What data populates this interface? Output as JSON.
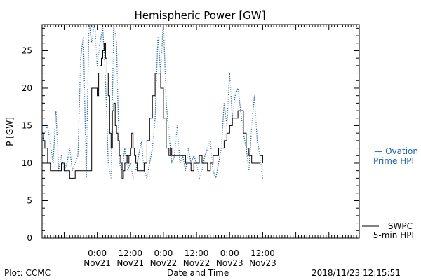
{
  "chart_data": {
    "type": "line",
    "title": "Hemispheric Power [GW]",
    "ylabel": "P [GW]",
    "xlabel": "Date and Time",
    "ylim": [
      0,
      28.5
    ],
    "yticks": [
      0,
      5,
      10,
      15,
      20,
      25
    ],
    "xlim": [
      -20,
      95
    ],
    "x_unit": "hours relative to 2018/11/21 00:00",
    "xticks": [
      {
        "x": 0,
        "line1": "0:00",
        "line2": "Nov21"
      },
      {
        "x": 12,
        "line1": "12:00",
        "line2": "Nov21"
      },
      {
        "x": 24,
        "line1": "0:00",
        "line2": "Nov22"
      },
      {
        "x": 36,
        "line1": "12:00",
        "line2": "Nov22"
      },
      {
        "x": 48,
        "line1": "0:00",
        "line2": "Nov23"
      },
      {
        "x": 60,
        "line1": "12:00",
        "line2": "Nov23"
      }
    ],
    "grid": false,
    "series": [
      {
        "name": "SWPC 5-min HPI",
        "name_line1": "SWPC",
        "name_line2": "5-min HPI",
        "color": "#000000",
        "style": "solid",
        "x": [
          -20,
          -19.5,
          -19,
          -18,
          -17,
          -15,
          -13,
          -12,
          -11,
          -10,
          -9,
          -8,
          -6,
          -4,
          -2,
          0,
          0.5,
          1,
          1.5,
          2,
          2.5,
          3,
          3.5,
          4,
          4.5,
          5,
          5.5,
          6,
          6.5,
          7,
          7.5,
          8,
          8.5,
          9,
          9.5,
          10,
          10.5,
          11,
          11.5,
          12,
          12.5,
          13,
          13.5,
          14,
          14.5,
          15,
          16,
          17,
          18,
          19,
          20,
          21,
          22,
          23,
          24,
          25,
          26,
          26.5,
          27,
          28,
          29,
          30,
          32,
          34,
          35,
          36,
          37,
          38,
          39,
          40,
          41,
          42,
          44,
          46,
          47,
          48,
          49,
          50,
          51,
          52,
          53,
          54,
          55,
          56,
          57,
          58,
          59,
          60
        ],
        "y": [
          14,
          13,
          12,
          10,
          9,
          9,
          10,
          9,
          9,
          8,
          8,
          9,
          9,
          9,
          20,
          19,
          22,
          23,
          24,
          25,
          26,
          24,
          22,
          19,
          14,
          12,
          17,
          18,
          15,
          14,
          13,
          11,
          10,
          8,
          9,
          10,
          11,
          10,
          11,
          12,
          14,
          12,
          11,
          10,
          9,
          9,
          9,
          10,
          13,
          16,
          19,
          22,
          22,
          20,
          16,
          12,
          11,
          12,
          11,
          11,
          11,
          11,
          10,
          9,
          10,
          10,
          11,
          10,
          10,
          9,
          10,
          11,
          12,
          13,
          14,
          15,
          16,
          16,
          17,
          17,
          14,
          12,
          11,
          10,
          10,
          10,
          11,
          10
        ]
      },
      {
        "name": "Ovation Prime HPI",
        "name_line1": "— Ovation",
        "name_line2": "Prime HPI",
        "color": "#1f5fbf",
        "style": "dotted",
        "x": [
          -20,
          -18,
          -16,
          -15,
          -14,
          -13,
          -12,
          -11,
          -10,
          -9,
          -8,
          -7,
          -6,
          -5,
          -4,
          -3,
          -2,
          -1,
          0,
          1,
          2,
          3,
          4,
          5,
          6,
          7,
          8,
          9,
          10,
          11,
          12,
          13,
          14,
          15,
          16,
          17,
          18,
          19,
          20,
          21,
          22,
          23,
          24,
          25,
          26,
          27,
          28,
          29,
          30,
          31,
          32,
          33,
          34,
          35,
          36,
          37,
          38,
          39,
          40,
          41,
          42,
          43,
          44,
          45,
          46,
          47,
          48,
          49,
          50,
          51,
          52,
          53,
          54,
          55,
          56,
          57,
          58,
          59,
          60
        ],
        "y": [
          13,
          15,
          10,
          17,
          9,
          11,
          9,
          10,
          12,
          9,
          10,
          11,
          24,
          27,
          8,
          29,
          26,
          29,
          23,
          26,
          28,
          21,
          10,
          8,
          29,
          26,
          10,
          9,
          12,
          9,
          10,
          8,
          9,
          11,
          13,
          9,
          8,
          10,
          12,
          16,
          27,
          22,
          29,
          18,
          14,
          10,
          11,
          15,
          10,
          11,
          9,
          12,
          10,
          11,
          10,
          8,
          9,
          11,
          12,
          13,
          9,
          8,
          10,
          12,
          18,
          15,
          22,
          16,
          19,
          20,
          17,
          14,
          12,
          9,
          15,
          19,
          13,
          11,
          8
        ]
      }
    ]
  },
  "footer": {
    "left": "Plot: CCMC",
    "center": "Date and Time",
    "right": "2018/11/23 12:15:51"
  }
}
